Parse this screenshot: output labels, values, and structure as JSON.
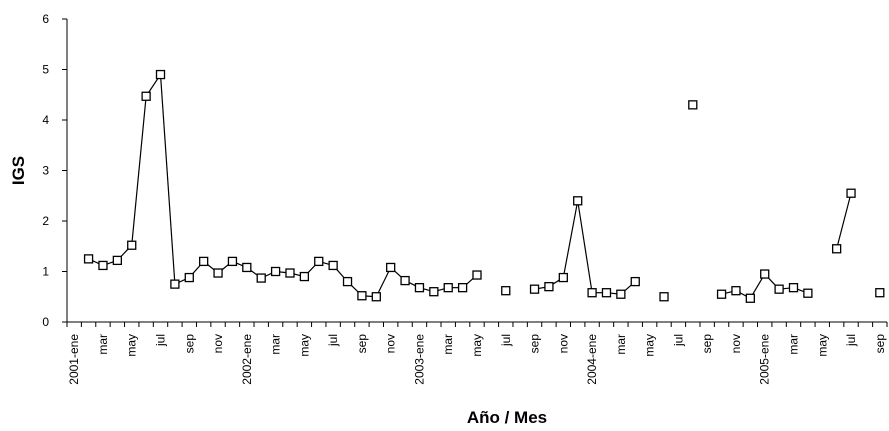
{
  "chart_data": {
    "type": "line",
    "title": "",
    "xlabel": "Año / Mes",
    "ylabel": "IGS",
    "ylim": [
      0,
      6
    ],
    "yticks": [
      0,
      1,
      2,
      3,
      4,
      5,
      6
    ],
    "grid": false,
    "legend": "none",
    "marker": "hollow-square",
    "line_color": "#000000",
    "x_tick_labels": [
      {
        "i": 0,
        "label": "2001-ene"
      },
      {
        "i": 2,
        "label": "mar"
      },
      {
        "i": 4,
        "label": "may"
      },
      {
        "i": 6,
        "label": "jul"
      },
      {
        "i": 8,
        "label": "sep"
      },
      {
        "i": 10,
        "label": "nov"
      },
      {
        "i": 12,
        "label": "2002-ene"
      },
      {
        "i": 14,
        "label": "mar"
      },
      {
        "i": 16,
        "label": "may"
      },
      {
        "i": 18,
        "label": "jul"
      },
      {
        "i": 20,
        "label": "sep"
      },
      {
        "i": 22,
        "label": "nov"
      },
      {
        "i": 24,
        "label": "2003-ene"
      },
      {
        "i": 26,
        "label": "mar"
      },
      {
        "i": 28,
        "label": "may"
      },
      {
        "i": 30,
        "label": "jul"
      },
      {
        "i": 32,
        "label": "sep"
      },
      {
        "i": 34,
        "label": "nov"
      },
      {
        "i": 36,
        "label": "2004-ene"
      },
      {
        "i": 38,
        "label": "mar"
      },
      {
        "i": 40,
        "label": "may"
      },
      {
        "i": 42,
        "label": "jul"
      },
      {
        "i": 44,
        "label": "sep"
      },
      {
        "i": 46,
        "label": "nov"
      },
      {
        "i": 48,
        "label": "2005-ene"
      },
      {
        "i": 50,
        "label": "mar"
      },
      {
        "i": 52,
        "label": "may"
      },
      {
        "i": 54,
        "label": "jul"
      },
      {
        "i": 56,
        "label": "sep"
      }
    ],
    "series": [
      {
        "values": [
          1.25,
          1.12,
          1.22,
          1.52,
          4.47,
          4.9,
          0.75,
          0.88,
          1.2,
          0.97,
          1.2,
          1.08,
          0.87,
          1.0,
          0.97,
          0.9,
          1.2,
          1.12,
          0.8,
          0.52,
          0.5,
          1.08,
          0.82,
          0.68,
          0.6,
          0.68,
          0.68,
          0.93,
          null,
          0.62,
          null,
          0.65,
          0.7,
          0.88,
          2.4,
          0.58,
          0.58,
          0.55,
          0.8,
          null,
          0.5,
          null,
          4.3,
          null,
          0.55,
          0.62,
          0.47,
          0.95,
          0.65,
          0.68,
          0.57,
          null,
          1.45,
          2.55,
          null,
          0.58
        ]
      }
    ]
  }
}
